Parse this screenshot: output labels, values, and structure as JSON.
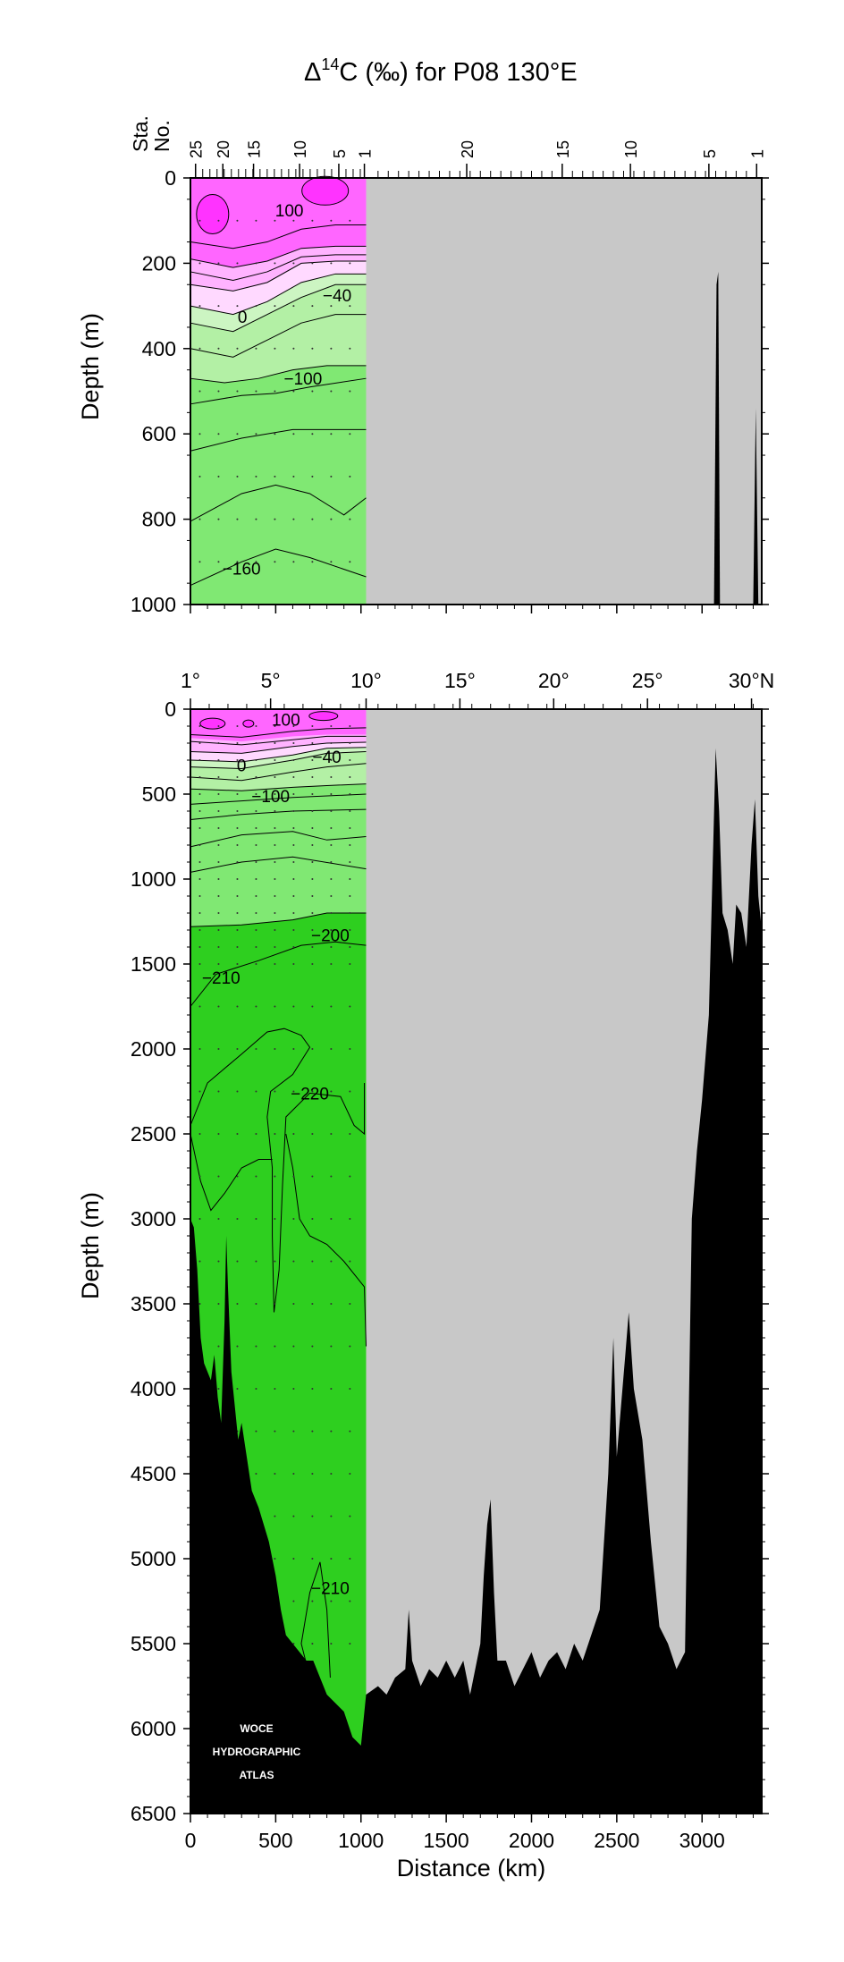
{
  "chart_data": {
    "type": "heatmap",
    "title_prefix": "Δ",
    "title_sup": "14",
    "title_suffix": "C (‰) for P08 130°E",
    "station_axis_label_1": "Sta.",
    "station_axis_label_2": "No.",
    "station_ticks_left": [
      "25",
      "20",
      "15",
      "10",
      "5",
      "1"
    ],
    "station_ticks_right": [
      "20",
      "15",
      "10",
      "5",
      "1"
    ],
    "latitude_ticks": [
      "1°",
      "5°",
      "10°",
      "15°",
      "20°",
      "25°",
      "30°N"
    ],
    "xlabel": "Distance (km)",
    "ylabel": "Depth (m)",
    "x_ticks": [
      0,
      500,
      1000,
      1500,
      2000,
      2500,
      3000
    ],
    "xlim": [
      0,
      3350
    ],
    "top_panel": {
      "ylim": [
        0,
        1000
      ],
      "y_ticks": [
        0,
        200,
        400,
        600,
        800,
        1000
      ],
      "contour_labels": [
        {
          "text": "100",
          "distance_km": 580,
          "depth_m": 75
        },
        {
          "text": "−40",
          "distance_km": 860,
          "depth_m": 275
        },
        {
          "text": "0",
          "distance_km": 305,
          "depth_m": 325
        },
        {
          "text": "−100",
          "distance_km": 660,
          "depth_m": 470
        },
        {
          "text": "−160",
          "distance_km": 300,
          "depth_m": 915
        }
      ]
    },
    "bottom_panel": {
      "ylim": [
        0,
        6500
      ],
      "y_ticks": [
        0,
        500,
        1000,
        1500,
        2000,
        2500,
        3000,
        3500,
        4000,
        4500,
        5000,
        5500,
        6000,
        6500
      ],
      "contour_labels": [
        {
          "text": "100",
          "distance_km": 560,
          "depth_m": 60
        },
        {
          "text": "0",
          "distance_km": 300,
          "depth_m": 330
        },
        {
          "text": "−40",
          "distance_km": 800,
          "depth_m": 280
        },
        {
          "text": "−100",
          "distance_km": 470,
          "depth_m": 510
        },
        {
          "text": "−200",
          "distance_km": 820,
          "depth_m": 1330
        },
        {
          "text": "−210",
          "distance_km": 180,
          "depth_m": 1580
        },
        {
          "text": "−220",
          "distance_km": 700,
          "depth_m": 2260
        },
        {
          "text": "−210",
          "distance_km": 820,
          "depth_m": 5170
        }
      ]
    },
    "data_extent_km": [
      0,
      1030
    ],
    "colors": {
      "magenta_strong": "#ff33ff",
      "magenta": "#ff66ff",
      "pink": "#ffb3ff",
      "pink_light": "#ffd9ff",
      "green_pale": "#ccf5c2",
      "green_light": "#b3f0a5",
      "green_mid": "#80e873",
      "green_deep": "#2ecf1f",
      "no_data": "#c8c8c8",
      "bathymetry": "#000000"
    },
    "watermark": [
      "WOCE",
      "HYDROGRAPHIC",
      "ATLAS"
    ]
  }
}
